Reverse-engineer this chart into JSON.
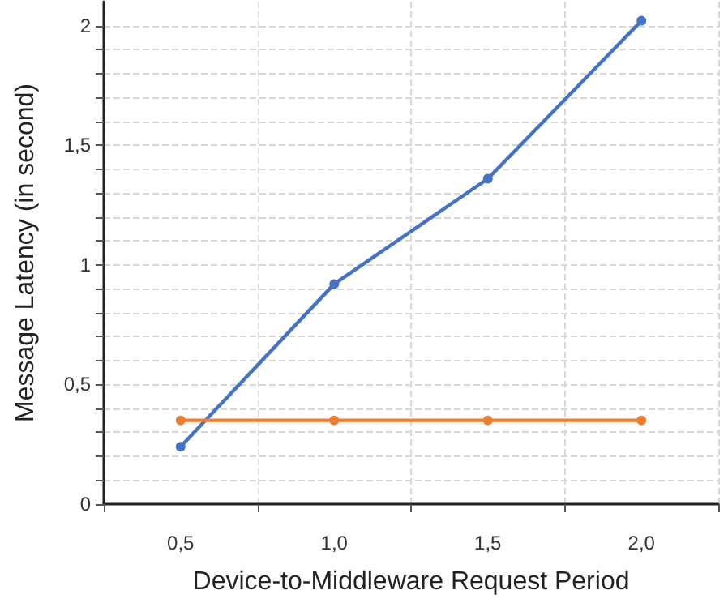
{
  "chart_data": {
    "type": "line",
    "xlabel": "Device-to-Middleware Request Period",
    "ylabel": "Message Latency (in second)",
    "categories": [
      "0,5",
      "1,0",
      "1,5",
      "2,0"
    ],
    "series": [
      {
        "color": "#4472c4",
        "values": [
          0.24,
          0.92,
          1.36,
          2.02
        ]
      },
      {
        "color": "#ed7d31",
        "values": [
          0.35,
          0.35,
          0.35,
          0.35
        ]
      }
    ],
    "ylim": [
      0,
      2.1
    ],
    "yticks": [
      0,
      {
        "value": 0.1,
        "label": null
      },
      {
        "value": 0.2,
        "label": null
      },
      {
        "value": 0.3,
        "label": null
      },
      {
        "value": 0.4,
        "label": null
      },
      {
        "value": 0.5,
        "label": "0,5"
      },
      {
        "value": 0.6,
        "label": null
      },
      {
        "value": 0.7,
        "label": null
      },
      {
        "value": 0.8,
        "label": null
      },
      {
        "value": 0.9,
        "label": null
      },
      1,
      {
        "value": 1.1,
        "label": null
      },
      {
        "value": 1.2,
        "label": null
      },
      {
        "value": 1.3,
        "label": null
      },
      {
        "value": 1.4,
        "label": null
      },
      {
        "value": 1.5,
        "label": "1,5"
      },
      {
        "value": 1.6,
        "label": null
      },
      {
        "value": 1.7,
        "label": null
      },
      {
        "value": 1.8,
        "label": null
      },
      {
        "value": 1.9,
        "label": null
      },
      2
    ],
    "grid": true,
    "marker": "circle",
    "line_style": "solid"
  }
}
